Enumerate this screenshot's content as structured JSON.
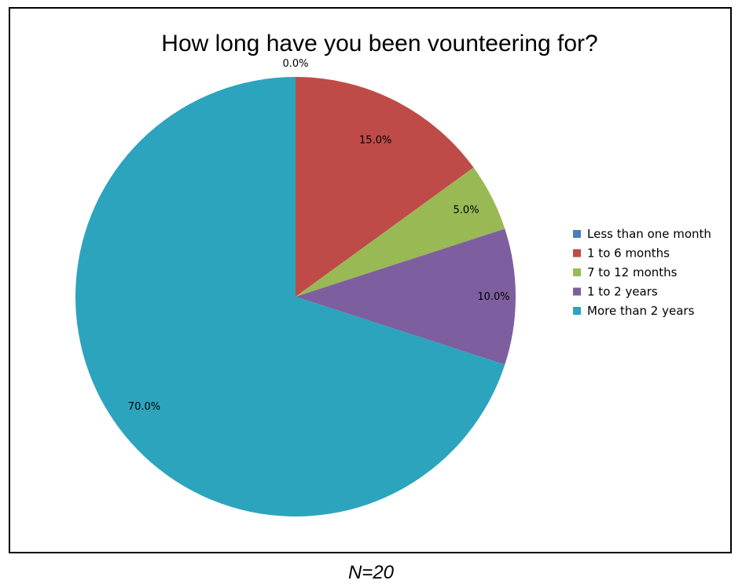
{
  "chart_data": {
    "type": "pie",
    "title": "How long have you been vounteering for?",
    "categories": [
      "Less than one month",
      "1 to 6 months",
      "7 to 12 months",
      "1 to 2 years",
      "More than 2 years"
    ],
    "values": [
      0.0,
      15.0,
      5.0,
      10.0,
      70.0
    ],
    "data_labels": [
      "0.0%",
      "15.0%",
      "5.0%",
      "10.0%",
      "70.0%"
    ],
    "colors": [
      "#4a7ebb",
      "#be4b48",
      "#98b954",
      "#7d5fa0",
      "#2ca4bd"
    ],
    "legend_position": "right"
  },
  "note": "N=20"
}
